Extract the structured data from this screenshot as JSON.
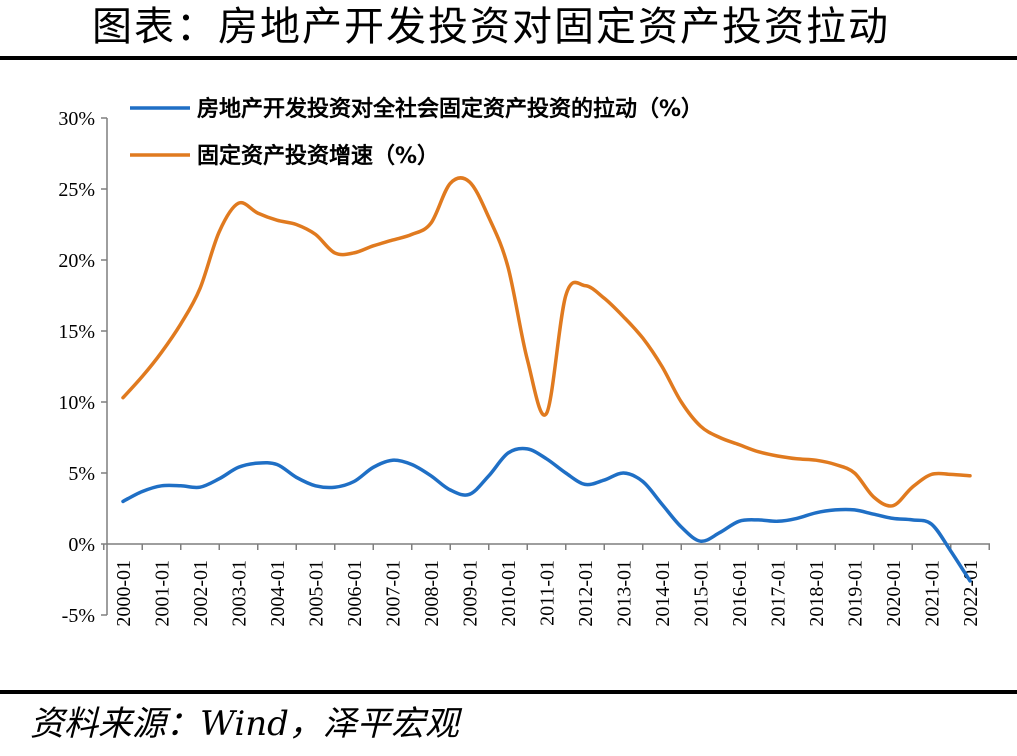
{
  "header": {
    "title": "图表：房地产开发投资对固定资产投资拉动"
  },
  "footer": {
    "source": "资料来源：Wind，泽平宏观"
  },
  "chart_data": {
    "type": "line",
    "x": [
      "2000-01",
      "2001-01",
      "2002-01",
      "2003-01",
      "2004-01",
      "2005-01",
      "2006-01",
      "2007-01",
      "2008-01",
      "2009-01",
      "2010-01",
      "2011-01",
      "2012-01",
      "2013-01",
      "2014-01",
      "2015-01",
      "2016-01",
      "2017-01",
      "2018-01",
      "2019-01",
      "2020-01",
      "2021-01",
      "2022-01"
    ],
    "ylim": [
      -5,
      30
    ],
    "yticks": [
      "30%",
      "25%",
      "20%",
      "15%",
      "10%",
      "5%",
      "0%",
      "-5%"
    ],
    "ytick_values": [
      30,
      25,
      20,
      15,
      10,
      5,
      0,
      -5
    ],
    "grid": false,
    "legend": "top-left",
    "series": [
      {
        "name": "房地产开发投资对全社会固定资产投资的拉动（%）",
        "color": "#1f6fc5",
        "points": [
          [
            0,
            3.0
          ],
          [
            0.5,
            3.7
          ],
          [
            1,
            4.1
          ],
          [
            1.5,
            4.1
          ],
          [
            2,
            4.0
          ],
          [
            2.5,
            4.6
          ],
          [
            3,
            5.4
          ],
          [
            3.5,
            5.7
          ],
          [
            4,
            5.6
          ],
          [
            4.5,
            4.7
          ],
          [
            5,
            4.1
          ],
          [
            5.5,
            4.0
          ],
          [
            6,
            4.4
          ],
          [
            6.5,
            5.4
          ],
          [
            7,
            5.9
          ],
          [
            7.5,
            5.6
          ],
          [
            8,
            4.8
          ],
          [
            8.5,
            3.8
          ],
          [
            9,
            3.5
          ],
          [
            9.5,
            4.8
          ],
          [
            10,
            6.4
          ],
          [
            10.5,
            6.7
          ],
          [
            11,
            6.0
          ],
          [
            11.5,
            5.0
          ],
          [
            12,
            4.2
          ],
          [
            12.5,
            4.5
          ],
          [
            13,
            5.0
          ],
          [
            13.5,
            4.4
          ],
          [
            14,
            2.8
          ],
          [
            14.5,
            1.2
          ],
          [
            15,
            0.2
          ],
          [
            15.5,
            0.8
          ],
          [
            16,
            1.6
          ],
          [
            16.5,
            1.7
          ],
          [
            17,
            1.6
          ],
          [
            17.5,
            1.8
          ],
          [
            18,
            2.2
          ],
          [
            18.5,
            2.4
          ],
          [
            19,
            2.4
          ],
          [
            19.5,
            2.1
          ],
          [
            20,
            1.8
          ],
          [
            20.5,
            1.7
          ],
          [
            21,
            1.4
          ],
          [
            21.5,
            -0.5
          ],
          [
            22,
            -2.6
          ]
        ]
      },
      {
        "name": "固定资产投资增速（%）",
        "color": "#e07a1f",
        "points": [
          [
            0,
            10.3
          ],
          [
            0.5,
            11.8
          ],
          [
            1,
            13.5
          ],
          [
            1.5,
            15.5
          ],
          [
            2,
            18.0
          ],
          [
            2.5,
            22.0
          ],
          [
            3,
            24.0
          ],
          [
            3.5,
            23.3
          ],
          [
            4,
            22.8
          ],
          [
            4.5,
            22.5
          ],
          [
            5,
            21.8
          ],
          [
            5.5,
            20.5
          ],
          [
            6,
            20.5
          ],
          [
            6.5,
            21.0
          ],
          [
            7,
            21.4
          ],
          [
            7.5,
            21.8
          ],
          [
            8,
            22.6
          ],
          [
            8.5,
            25.4
          ],
          [
            9,
            25.5
          ],
          [
            9.5,
            23.0
          ],
          [
            10,
            19.5
          ],
          [
            10.5,
            13.0
          ],
          [
            11,
            9.2
          ],
          [
            11.5,
            17.5
          ],
          [
            12,
            18.2
          ],
          [
            12.5,
            17.3
          ],
          [
            13,
            16.0
          ],
          [
            13.5,
            14.5
          ],
          [
            14,
            12.5
          ],
          [
            14.5,
            10.0
          ],
          [
            15,
            8.3
          ],
          [
            15.5,
            7.5
          ],
          [
            16,
            7.0
          ],
          [
            16.5,
            6.5
          ],
          [
            17,
            6.2
          ],
          [
            17.5,
            6.0
          ],
          [
            18,
            5.9
          ],
          [
            18.5,
            5.6
          ],
          [
            19,
            5.0
          ],
          [
            19.5,
            3.3
          ],
          [
            20,
            2.7
          ],
          [
            20.5,
            4.0
          ],
          [
            21,
            4.9
          ],
          [
            21.5,
            4.9
          ],
          [
            22,
            4.8
          ]
        ]
      }
    ]
  }
}
